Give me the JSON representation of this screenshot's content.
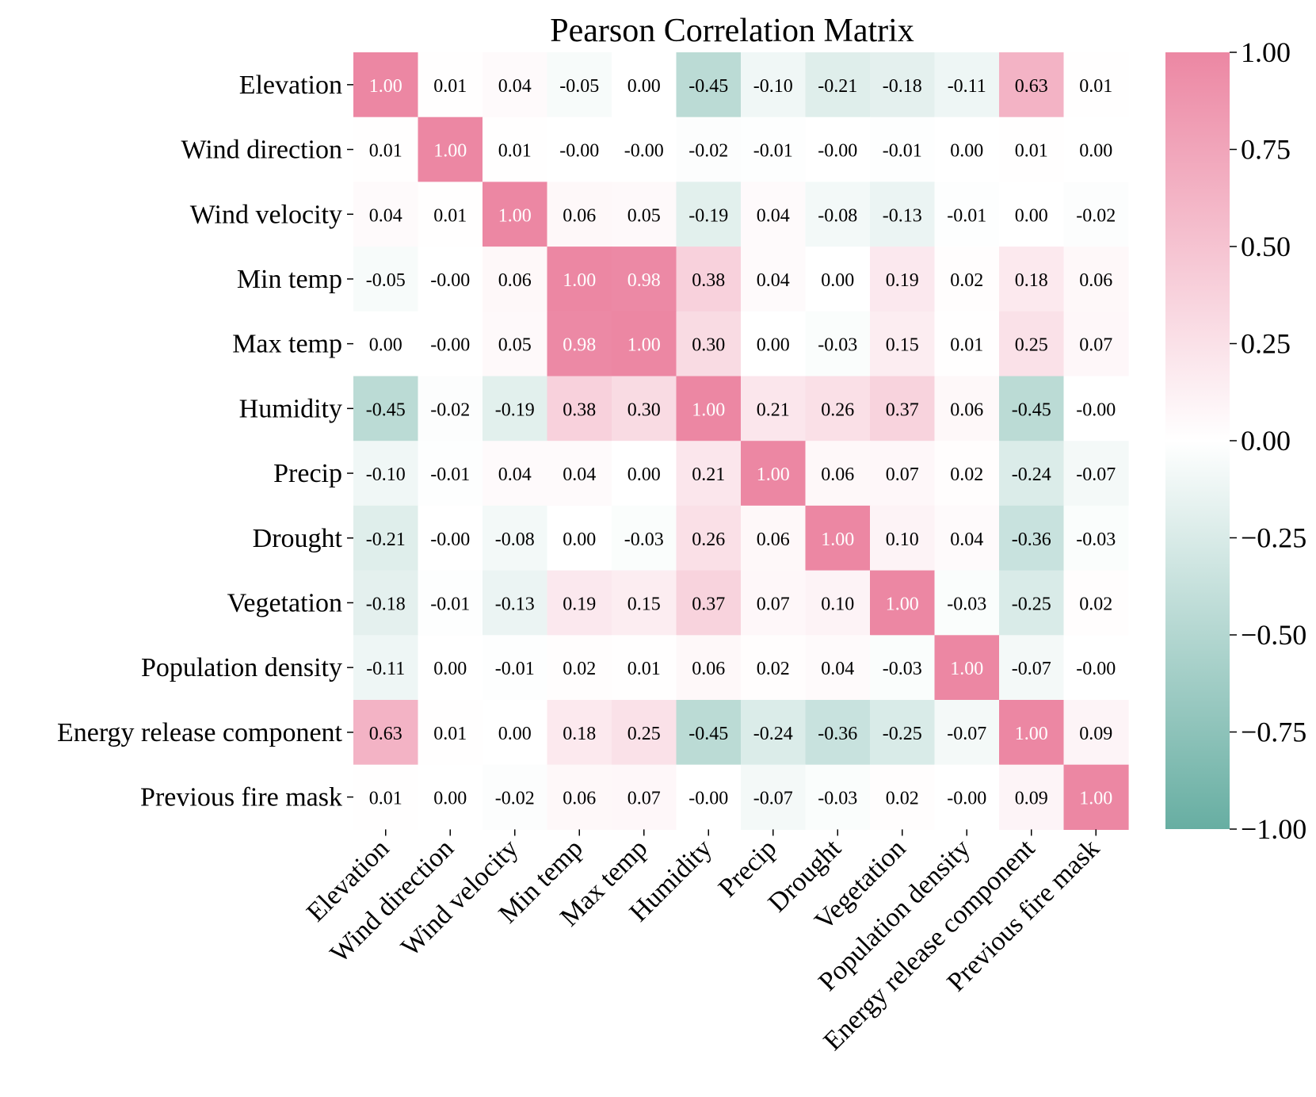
{
  "chart_data": {
    "type": "heatmap",
    "title": "Pearson Correlation Matrix",
    "labels": [
      "Elevation",
      "Wind direction",
      "Wind velocity",
      "Min temp",
      "Max temp",
      "Humidity",
      "Precip",
      "Drought",
      "Vegetation",
      "Population density",
      "Energy release component",
      "Previous fire mask"
    ],
    "cell_text": [
      [
        "1.00",
        "0.01",
        "0.04",
        "-0.05",
        "0.00",
        "-0.45",
        "-0.10",
        "-0.21",
        "-0.18",
        "-0.11",
        "0.63",
        "0.01"
      ],
      [
        "0.01",
        "1.00",
        "0.01",
        "-0.00",
        "-0.00",
        "-0.02",
        "-0.01",
        "-0.00",
        "-0.01",
        "0.00",
        "0.01",
        "0.00"
      ],
      [
        "0.04",
        "0.01",
        "1.00",
        "0.06",
        "0.05",
        "-0.19",
        "0.04",
        "-0.08",
        "-0.13",
        "-0.01",
        "0.00",
        "-0.02"
      ],
      [
        "-0.05",
        "-0.00",
        "0.06",
        "1.00",
        "0.98",
        "0.38",
        "0.04",
        "0.00",
        "0.19",
        "0.02",
        "0.18",
        "0.06"
      ],
      [
        "0.00",
        "-0.00",
        "0.05",
        "0.98",
        "1.00",
        "0.30",
        "0.00",
        "-0.03",
        "0.15",
        "0.01",
        "0.25",
        "0.07"
      ],
      [
        "-0.45",
        "-0.02",
        "-0.19",
        "0.38",
        "0.30",
        "1.00",
        "0.21",
        "0.26",
        "0.37",
        "0.06",
        "-0.45",
        "-0.00"
      ],
      [
        "-0.10",
        "-0.01",
        "0.04",
        "0.04",
        "0.00",
        "0.21",
        "1.00",
        "0.06",
        "0.07",
        "0.02",
        "-0.24",
        "-0.07"
      ],
      [
        "-0.21",
        "-0.00",
        "-0.08",
        "0.00",
        "-0.03",
        "0.26",
        "0.06",
        "1.00",
        "0.10",
        "0.04",
        "-0.36",
        "-0.03"
      ],
      [
        "-0.18",
        "-0.01",
        "-0.13",
        "0.19",
        "0.15",
        "0.37",
        "0.07",
        "0.10",
        "1.00",
        "-0.03",
        "-0.25",
        "0.02"
      ],
      [
        "-0.11",
        "0.00",
        "-0.01",
        "0.02",
        "0.01",
        "0.06",
        "0.02",
        "0.04",
        "-0.03",
        "1.00",
        "-0.07",
        "-0.00"
      ],
      [
        "0.63",
        "0.01",
        "0.00",
        "0.18",
        "0.25",
        "-0.45",
        "-0.24",
        "-0.36",
        "-0.25",
        "-0.07",
        "1.00",
        "0.09"
      ],
      [
        "0.01",
        "0.00",
        "-0.02",
        "0.06",
        "0.07",
        "-0.00",
        "-0.07",
        "-0.03",
        "0.02",
        "-0.00",
        "0.09",
        "1.00"
      ]
    ],
    "vmin": -1.0,
    "vmax": 1.0,
    "colorbar_ticks": [
      "1.00",
      "0.75",
      "0.50",
      "0.25",
      "0.00",
      "−0.25",
      "−0.50",
      "−0.75",
      "−1.00"
    ],
    "colorbar_tick_values": [
      1.0,
      0.75,
      0.5,
      0.25,
      0.0,
      -0.25,
      -0.5,
      -0.75,
      -1.0
    ],
    "colors": {
      "positive": "#ec87a3",
      "center": "#ffffff",
      "negative": "#67aea2",
      "text_dark": "#000000",
      "text_light": "#ffffff"
    }
  }
}
